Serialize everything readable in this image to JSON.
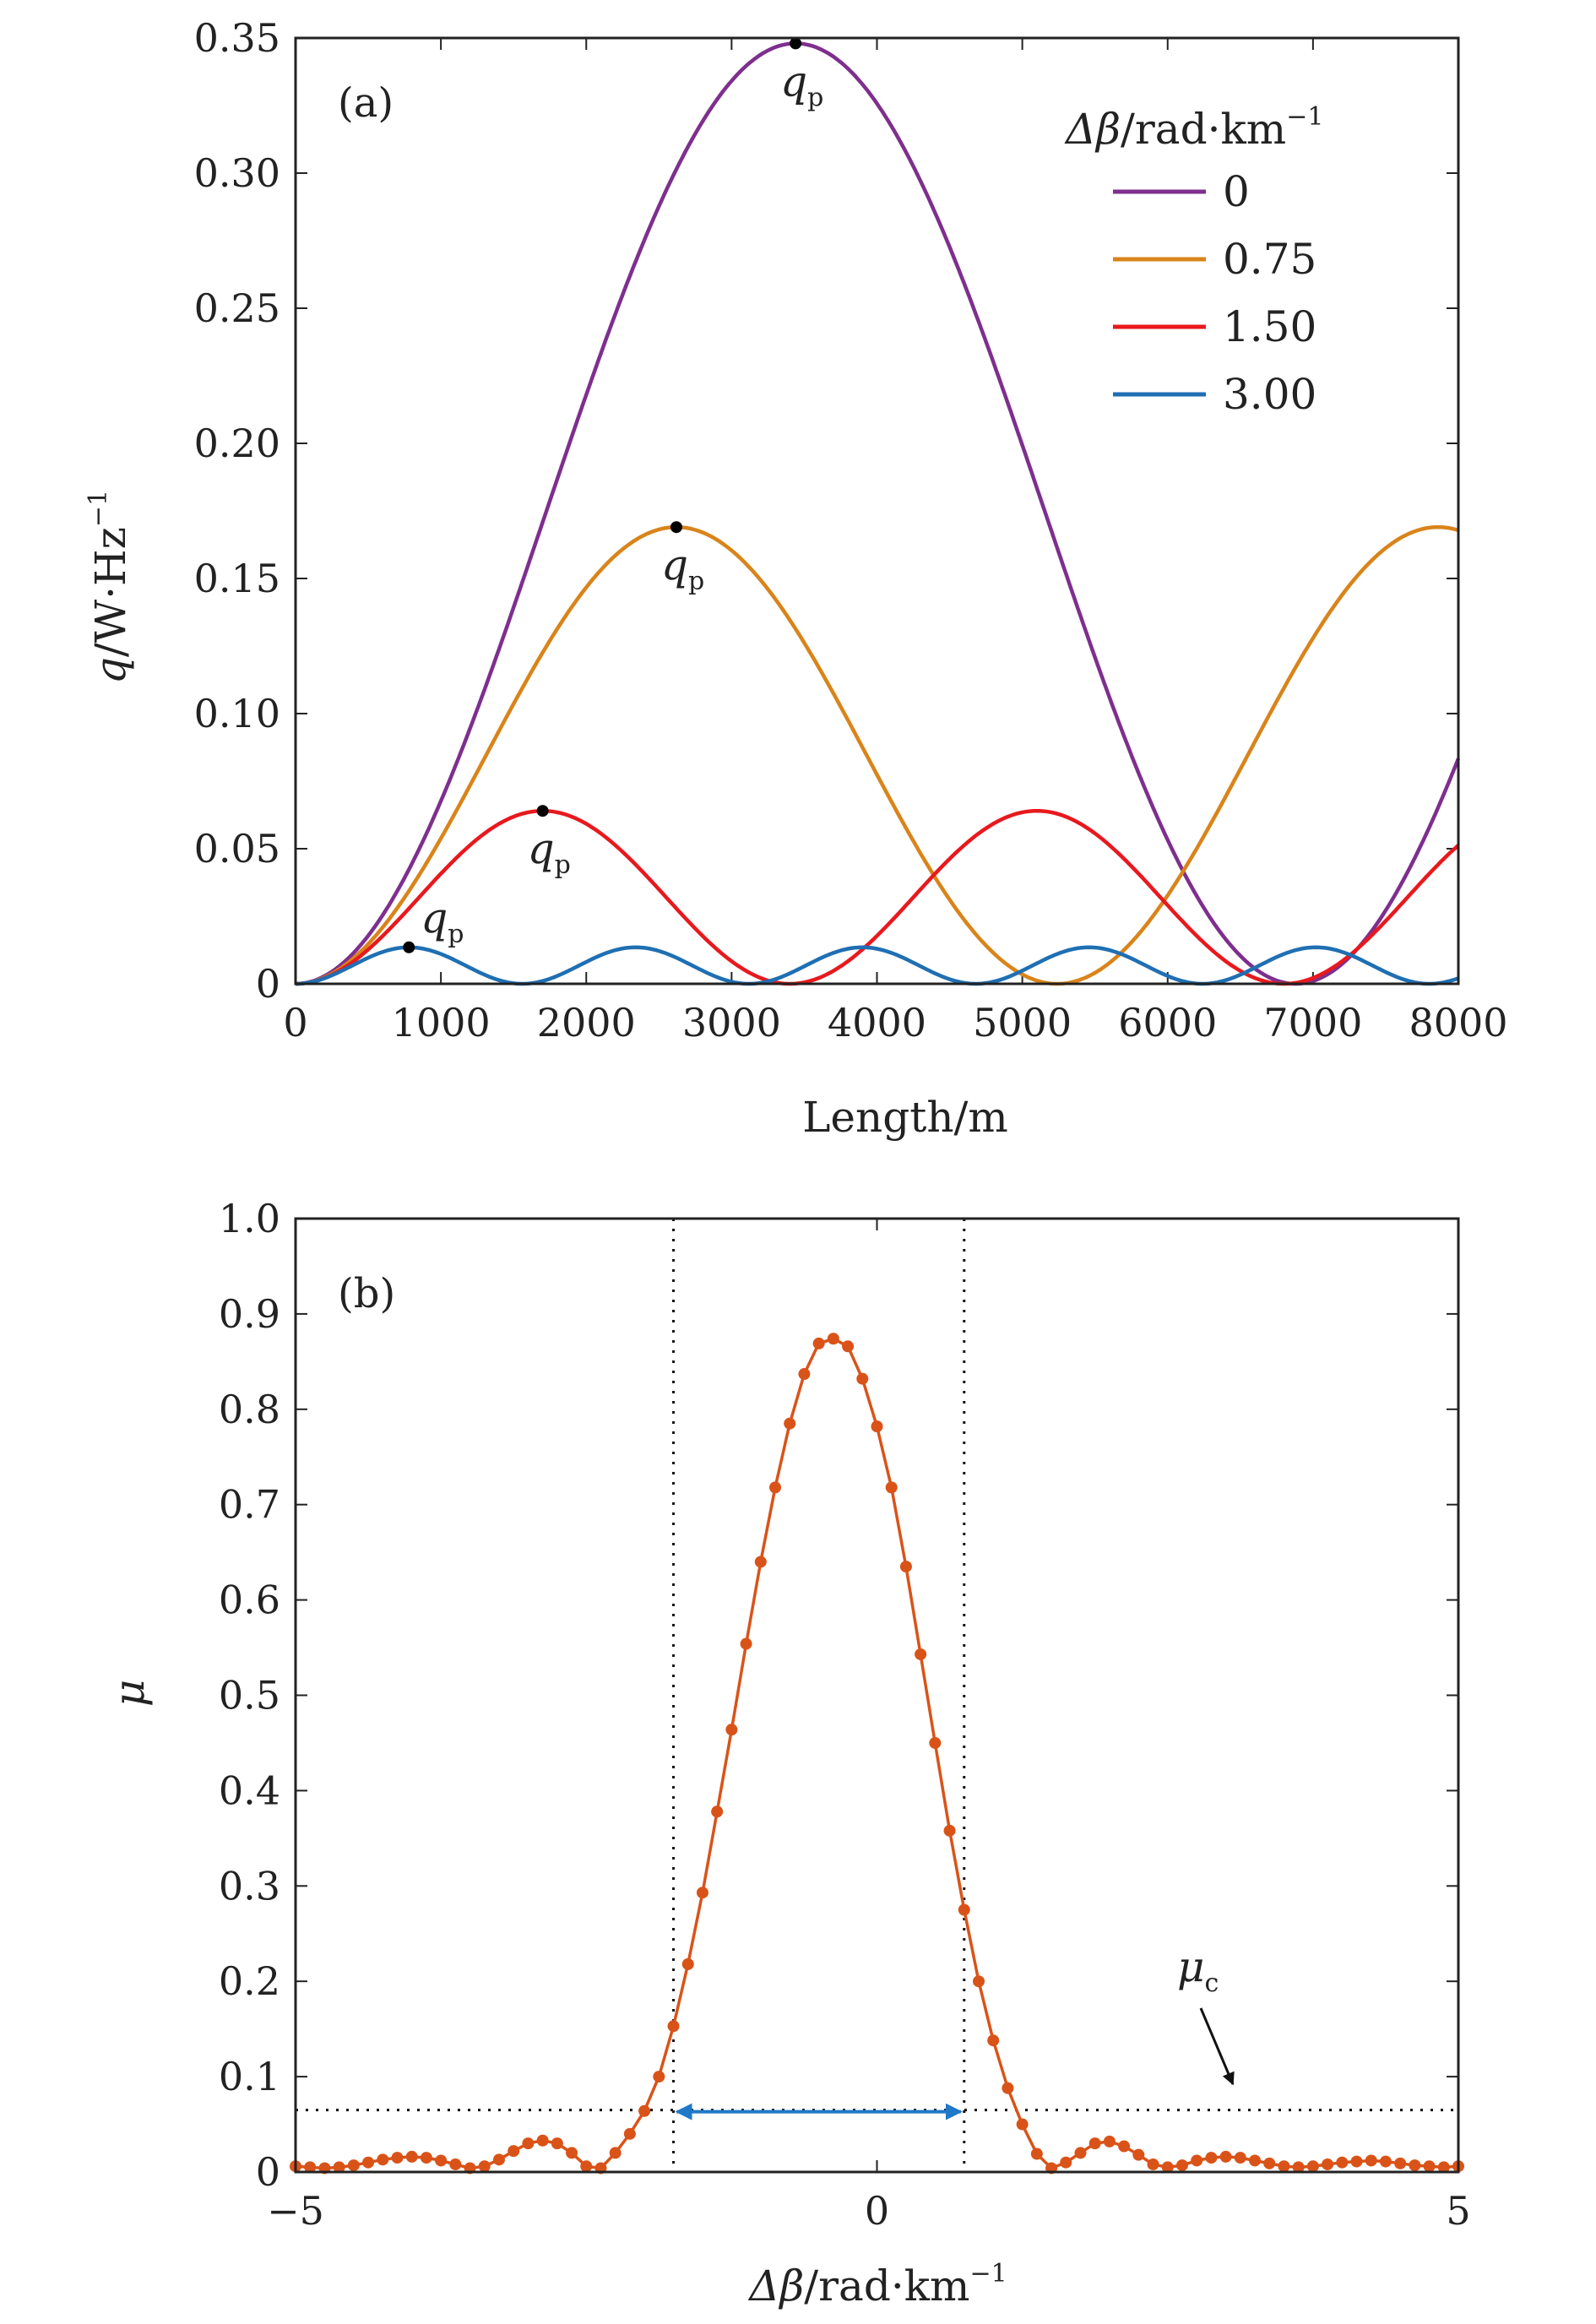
{
  "colors": {
    "purple": "#7e2f8e",
    "orange": "#d9841a",
    "red": "#e8191e",
    "blue": "#1f6fb3",
    "mu_curve": "#d95319",
    "mu_arrow": "#1f78c8",
    "axis": "#222222"
  },
  "chart_data": [
    {
      "type": "line",
      "panel_label": "(a)",
      "xlabel": "Length/m",
      "ylabel_main": "q",
      "ylabel_unit": "/W·Hz",
      "ylabel_exp": "−1",
      "xlim": [
        0,
        8000
      ],
      "ylim": [
        0,
        0.35
      ],
      "x_ticks": [
        0,
        1000,
        2000,
        3000,
        4000,
        5000,
        6000,
        7000,
        8000
      ],
      "x_tick_labels": [
        "0",
        "1000",
        "2000",
        "3000",
        "4000",
        "5000",
        "6000",
        "7000",
        "8000"
      ],
      "y_ticks": [
        0,
        0.05,
        0.1,
        0.15,
        0.2,
        0.25,
        0.3,
        0.35
      ],
      "y_tick_labels": [
        "0",
        "0.05",
        "0.10",
        "0.15",
        "0.20",
        "0.25",
        "0.30",
        "0.35"
      ],
      "legend_title_main": "Δβ",
      "legend_title_unit": "/rad·km",
      "legend_title_exp": "−1",
      "legend_position": "top-right",
      "peak_label_main": "q",
      "peak_label_sub": "p",
      "series": [
        {
          "name": "0",
          "color_key": "purple",
          "dbeta": 0,
          "peak": 0.348,
          "peak_x": 3440
        },
        {
          "name": "0.75",
          "color_key": "orange",
          "dbeta": 0.75,
          "peak": 0.169,
          "peak_x": 2620
        },
        {
          "name": "1.50",
          "color_key": "red",
          "dbeta": 1.5,
          "peak": 0.064,
          "peak_x": 1700
        },
        {
          "name": "3.00",
          "color_key": "blue",
          "dbeta": 3.0,
          "peak": 0.0135,
          "peak_x": 780
        }
      ]
    },
    {
      "type": "line",
      "panel_label": "(b)",
      "xlabel_main": "Δβ",
      "xlabel_unit": "/rad·km",
      "xlabel_exp": "−1",
      "ylabel": "μ",
      "xlim": [
        -5,
        5
      ],
      "ylim": [
        0,
        1.0
      ],
      "x_ticks": [
        -5,
        0,
        5
      ],
      "x_tick_labels": [
        "−5",
        "0",
        "5"
      ],
      "y_ticks": [
        0,
        0.1,
        0.2,
        0.3,
        0.4,
        0.5,
        0.6,
        0.7,
        0.8,
        0.9,
        1.0
      ],
      "y_tick_labels": [
        "0",
        "0.1",
        "0.2",
        "0.3",
        "0.4",
        "0.5",
        "0.6",
        "0.7",
        "0.8",
        "0.9",
        "1.0"
      ],
      "threshold_label_main": "μ",
      "threshold_label_sub": "c",
      "threshold_mu": 0.065,
      "vertical_lines_x": [
        -1.75,
        0.75
      ],
      "series": [
        {
          "name": "μ",
          "color_key": "mu_curve",
          "x": [
            -5.0,
            -4.875,
            -4.75,
            -4.625,
            -4.5,
            -4.375,
            -4.25,
            -4.125,
            -4.0,
            -3.875,
            -3.75,
            -3.625,
            -3.5,
            -3.375,
            -3.25,
            -3.125,
            -3.0,
            -2.875,
            -2.75,
            -2.625,
            -2.5,
            -2.375,
            -2.25,
            -2.125,
            -2.0,
            -1.875,
            -1.75,
            -1.625,
            -1.5,
            -1.375,
            -1.25,
            -1.125,
            -1.0,
            -0.875,
            -0.75,
            -0.625,
            -0.5,
            -0.375,
            -0.25,
            -0.125,
            0.0,
            0.125,
            0.25,
            0.375,
            0.5,
            0.625,
            0.75,
            0.875,
            1.0,
            1.125,
            1.25,
            1.375,
            1.5,
            1.625,
            1.75,
            1.875,
            2.0,
            2.125,
            2.25,
            2.375,
            2.5,
            2.625,
            2.75,
            2.875,
            3.0,
            3.125,
            3.25,
            3.375,
            3.5,
            3.625,
            3.75,
            3.875,
            4.0,
            4.125,
            4.25,
            4.375,
            4.5,
            4.625,
            4.75,
            4.875,
            5.0
          ],
          "y": [
            0.006,
            0.005,
            0.004,
            0.005,
            0.007,
            0.01,
            0.013,
            0.015,
            0.016,
            0.015,
            0.012,
            0.008,
            0.004,
            0.006,
            0.013,
            0.022,
            0.03,
            0.033,
            0.03,
            0.02,
            0.006,
            0.004,
            0.02,
            0.04,
            0.064,
            0.1,
            0.153,
            0.218,
            0.293,
            0.378,
            0.464,
            0.554,
            0.64,
            0.718,
            0.785,
            0.837,
            0.869,
            0.874,
            0.866,
            0.832,
            0.782,
            0.718,
            0.635,
            0.543,
            0.45,
            0.358,
            0.275,
            0.2,
            0.138,
            0.088,
            0.05,
            0.019,
            0.004,
            0.01,
            0.02,
            0.03,
            0.032,
            0.027,
            0.018,
            0.008,
            0.005,
            0.007,
            0.012,
            0.015,
            0.016,
            0.015,
            0.012,
            0.009,
            0.006,
            0.005,
            0.006,
            0.008,
            0.01,
            0.011,
            0.012,
            0.011,
            0.009,
            0.007,
            0.006,
            0.005,
            0.006
          ]
        }
      ]
    }
  ]
}
